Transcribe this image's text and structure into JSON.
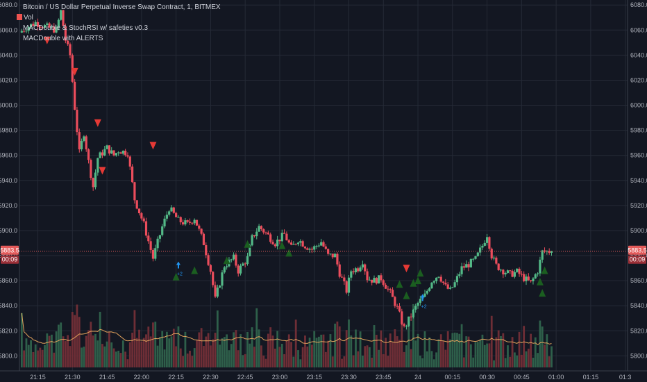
{
  "legend": {
    "title": "Bitcoin / US Dollar Perpetual Inverse Swap Contract, 1, BITMEX",
    "vol": "Vol",
    "indicator1": "MACDouble & StochRSI w/ safeties v0.3",
    "indicator2": "MACDouble with ALERTS"
  },
  "price_tag": {
    "price": "5883.5",
    "countdown": "00:09"
  },
  "colors": {
    "background": "#131722",
    "up": "#53b987",
    "down": "#eb4d5c",
    "volume_up": "#2e5f4a",
    "volume_down": "#6e2e36",
    "ma_line": "#e6a55d",
    "current_price": "#e35a5a",
    "buy_marker": "#1b5e20",
    "sell_marker": "#e53935",
    "alert_arrow": "#2196f3"
  },
  "chart_data": {
    "type": "candlestick",
    "symbol": "XBTUSD",
    "exchange": "BITMEX",
    "interval": "1",
    "y_ticks": [
      "5800.0",
      "5820.0",
      "5840.0",
      "5860.0",
      "5880.0",
      "5900.0",
      "5920.0",
      "5940.0",
      "5960.0",
      "5980.0",
      "6000.0",
      "6020.0",
      "6040.0",
      "6060.0",
      "6080.0"
    ],
    "x_ticks": [
      {
        "label": "21:15",
        "t": 0
      },
      {
        "label": "21:30",
        "t": 15
      },
      {
        "label": "21:45",
        "t": 30
      },
      {
        "label": "22:00",
        "t": 45
      },
      {
        "label": "22:15",
        "t": 60
      },
      {
        "label": "22:30",
        "t": 75
      },
      {
        "label": "22:45",
        "t": 90
      },
      {
        "label": "23:00",
        "t": 105
      },
      {
        "label": "23:15",
        "t": 120
      },
      {
        "label": "23:30",
        "t": 135
      },
      {
        "label": "23:45",
        "t": 150
      },
      {
        "label": "24",
        "t": 165
      },
      {
        "label": "00:15",
        "t": 180
      },
      {
        "label": "00:30",
        "t": 195
      },
      {
        "label": "00:45",
        "t": 210
      },
      {
        "label": "01:00",
        "t": 225
      },
      {
        "label": "01:15",
        "t": 240
      },
      {
        "label": "01:3",
        "t": 255
      }
    ],
    "y_range": [
      5788,
      6084
    ],
    "x_range_minutes": [
      -8,
      256
    ],
    "current_price": 5883.5,
    "price_anchors": [
      [
        -7,
        6058
      ],
      [
        -4,
        6062
      ],
      [
        0,
        6066
      ],
      [
        4,
        6063
      ],
      [
        9,
        6060
      ],
      [
        11,
        6075
      ],
      [
        13,
        6052
      ],
      [
        15,
        6040
      ],
      [
        17,
        5998
      ],
      [
        19,
        5962
      ],
      [
        21,
        5978
      ],
      [
        23,
        5955
      ],
      [
        25,
        5935
      ],
      [
        27,
        5958
      ],
      [
        31,
        5966
      ],
      [
        34,
        5960
      ],
      [
        36,
        5964
      ],
      [
        40,
        5962
      ],
      [
        43,
        5925
      ],
      [
        47,
        5905
      ],
      [
        51,
        5878
      ],
      [
        55,
        5903
      ],
      [
        58,
        5918
      ],
      [
        62,
        5908
      ],
      [
        66,
        5905
      ],
      [
        69,
        5910
      ],
      [
        73,
        5890
      ],
      [
        76,
        5868
      ],
      [
        78,
        5845
      ],
      [
        82,
        5872
      ],
      [
        86,
        5878
      ],
      [
        88,
        5868
      ],
      [
        92,
        5878
      ],
      [
        94,
        5894
      ],
      [
        97,
        5903
      ],
      [
        100,
        5898
      ],
      [
        104,
        5890
      ],
      [
        108,
        5897
      ],
      [
        111,
        5886
      ],
      [
        114,
        5893
      ],
      [
        117,
        5888
      ],
      [
        120,
        5885
      ],
      [
        124,
        5891
      ],
      [
        127,
        5880
      ],
      [
        130,
        5880
      ],
      [
        132,
        5866
      ],
      [
        135,
        5852
      ],
      [
        137,
        5868
      ],
      [
        140,
        5870
      ],
      [
        142,
        5876
      ],
      [
        144,
        5862
      ],
      [
        147,
        5860
      ],
      [
        150,
        5862
      ],
      [
        154,
        5850
      ],
      [
        157,
        5838
      ],
      [
        160,
        5822
      ],
      [
        163,
        5832
      ],
      [
        166,
        5842
      ],
      [
        169,
        5848
      ],
      [
        172,
        5860
      ],
      [
        175,
        5865
      ],
      [
        178,
        5855
      ],
      [
        180,
        5852
      ],
      [
        182,
        5858
      ],
      [
        185,
        5870
      ],
      [
        188,
        5873
      ],
      [
        191,
        5877
      ],
      [
        194,
        5888
      ],
      [
        196,
        5897
      ],
      [
        198,
        5880
      ],
      [
        200,
        5872
      ],
      [
        203,
        5868
      ],
      [
        206,
        5865
      ],
      [
        209,
        5867
      ],
      [
        212,
        5862
      ],
      [
        215,
        5858
      ],
      [
        218,
        5868
      ],
      [
        220,
        5883
      ],
      [
        223,
        5883.5
      ]
    ],
    "buy_markers": [
      {
        "t": 60,
        "y": 5863
      },
      {
        "t": 68,
        "y": 5868
      },
      {
        "t": 82,
        "y": 5876
      },
      {
        "t": 91,
        "y": 5889
      },
      {
        "t": 106,
        "y": 5888
      },
      {
        "t": 109,
        "y": 5882
      },
      {
        "t": 157,
        "y": 5857
      },
      {
        "t": 160,
        "y": 5848
      },
      {
        "t": 163,
        "y": 5858
      },
      {
        "t": 165,
        "y": 5860
      },
      {
        "t": 166,
        "y": 5866
      },
      {
        "t": 218,
        "y": 5859
      },
      {
        "t": 219,
        "y": 5850
      },
      {
        "t": 220,
        "y": 5868
      }
    ],
    "sell_markers": [
      {
        "t": 4,
        "y": 6052
      },
      {
        "t": 16,
        "y": 6027
      },
      {
        "t": 26,
        "y": 5986
      },
      {
        "t": 28,
        "y": 5948
      },
      {
        "t": 50,
        "y": 5968
      },
      {
        "t": 160,
        "y": 5870
      }
    ],
    "alert_arrows": [
      {
        "t": 61,
        "y": 5872,
        "label": "+2"
      },
      {
        "t": 167,
        "y": 5846,
        "label": "+2"
      }
    ]
  }
}
